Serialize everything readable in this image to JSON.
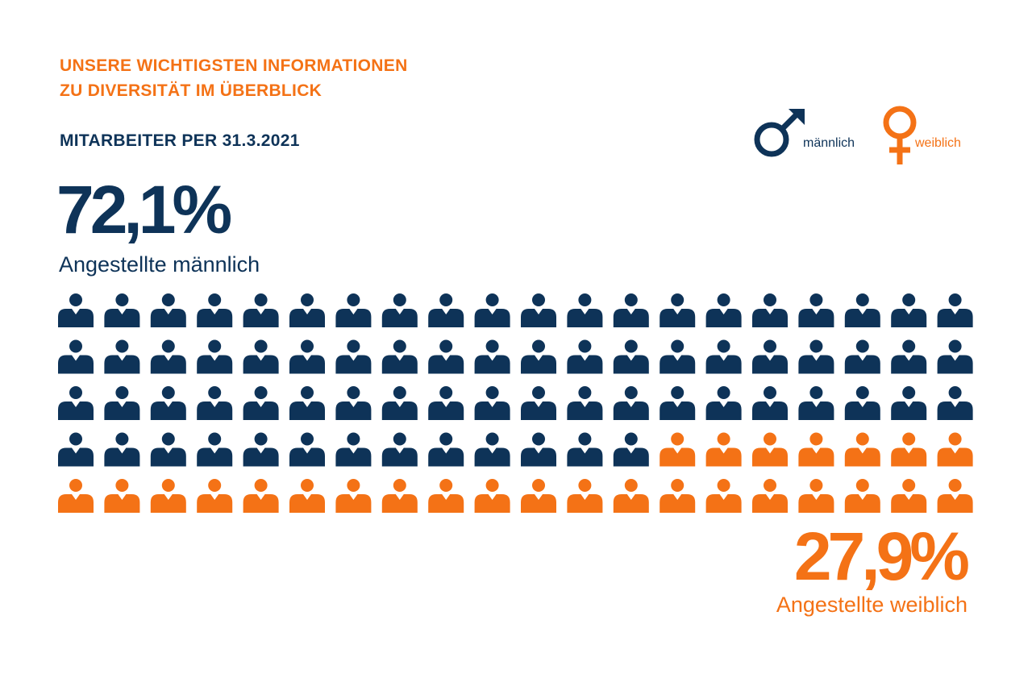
{
  "header": {
    "title_line1": "UNSERE WICHTIGSTEN INFORMATIONEN",
    "title_line2": "ZU DIVERSITÄT IM ÜBERBLICK",
    "subtitle": "MITARBEITER PER 31.3.2021"
  },
  "legend": {
    "male_label": "männlich",
    "female_label": "weiblich"
  },
  "stats": {
    "male_percent": "72,1%",
    "male_label": "Angestellte männlich",
    "female_percent": "27,9%",
    "female_label": "Angestellte weiblich"
  },
  "colors": {
    "male": "#0e3358",
    "female": "#f47216"
  },
  "chart_data": {
    "type": "pictograph",
    "title": "MITARBEITER PER 31.3.2021",
    "total_icons": 100,
    "rows": 5,
    "columns": 20,
    "series": [
      {
        "name": "Angestellte männlich",
        "legend": "männlich",
        "percent": 72.1,
        "icons": 73,
        "color": "#0e3358"
      },
      {
        "name": "Angestellte weiblich",
        "legend": "weiblich",
        "percent": 27.9,
        "icons": 27,
        "color": "#f47216"
      }
    ]
  }
}
